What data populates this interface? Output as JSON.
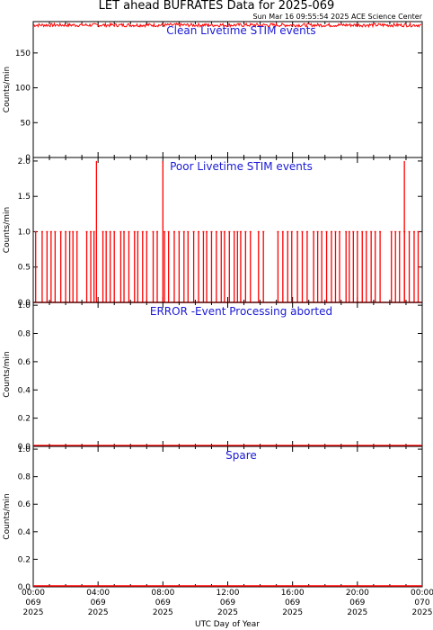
{
  "header": {
    "title": "LET ahead BUFRATES Data for 2025-069",
    "timestamp": "Sun Mar 16 09:55:54 2025 ACE Science Center"
  },
  "colors": {
    "series": "#ff0000",
    "panel_title": "#1a1ad6",
    "axes": "#000000"
  },
  "x_axis": {
    "label": "UTC Day of Year",
    "ticks": [
      {
        "time": "00:00",
        "doy": "069",
        "year": "2025"
      },
      {
        "time": "04:00",
        "doy": "069",
        "year": "2025"
      },
      {
        "time": "08:00",
        "doy": "069",
        "year": "2025"
      },
      {
        "time": "12:00",
        "doy": "069",
        "year": "2025"
      },
      {
        "time": "16:00",
        "doy": "069",
        "year": "2025"
      },
      {
        "time": "20:00",
        "doy": "069",
        "year": "2025"
      },
      {
        "time": "00:00",
        "doy": "070",
        "year": "2025"
      }
    ]
  },
  "chart_data": [
    {
      "type": "line",
      "title": "Clean Livetime STIM events",
      "ylabel": "Counts/min",
      "xlim": [
        0,
        24
      ],
      "ylim": [
        0,
        195
      ],
      "yticks": [
        0,
        50,
        100,
        150
      ],
      "ytick_labels": [
        "0",
        "50",
        "100",
        "150"
      ],
      "series": [
        {
          "constant": 190,
          "noise": 2.5
        }
      ]
    },
    {
      "type": "line",
      "title": "Poor Livetime STIM events",
      "ylabel": "Counts/min",
      "xlim": [
        0,
        24
      ],
      "ylim": [
        0,
        2.05
      ],
      "yticks": [
        0,
        0.5,
        1,
        1.5,
        2
      ],
      "ytick_labels": [
        "0.0",
        "0.5",
        "1.0",
        "1.5",
        "2.0"
      ],
      "series": [
        {
          "ones_hours": [
            0.15,
            0.55,
            0.85,
            1.1,
            1.35,
            1.7,
            2.0,
            2.25,
            2.45,
            2.7,
            3.3,
            3.55,
            3.75,
            4.3,
            4.5,
            4.75,
            5.0,
            5.4,
            5.6,
            5.9,
            6.25,
            6.45,
            6.75,
            7.0,
            7.4,
            7.65,
            8.1,
            8.35,
            8.7,
            9.0,
            9.3,
            9.55,
            9.9,
            10.2,
            10.5,
            10.7,
            11.0,
            11.3,
            11.6,
            11.8,
            12.1,
            12.4,
            12.6,
            12.8,
            13.1,
            13.4,
            13.9,
            14.2,
            15.1,
            15.4,
            15.7,
            15.95,
            16.3,
            16.6,
            16.9,
            17.3,
            17.55,
            17.8,
            18.1,
            18.4,
            18.65,
            18.9,
            19.3,
            19.5,
            19.75,
            20.0,
            20.3,
            20.55,
            20.85,
            21.1,
            21.4,
            22.1,
            22.35,
            22.6,
            22.9,
            23.2,
            23.5,
            23.75
          ],
          "twos_hours": [
            3.9,
            8.0,
            22.9
          ]
        }
      ]
    },
    {
      "type": "line",
      "title": "ERROR -Event Processing aborted",
      "ylabel": "Counts/min",
      "xlim": [
        0,
        24
      ],
      "ylim": [
        0,
        1.02
      ],
      "yticks": [
        0,
        0.2,
        0.4,
        0.6,
        0.8,
        1.0
      ],
      "ytick_labels": [
        "0.0",
        "0.2",
        "0.4",
        "0.6",
        "0.8",
        "1.0"
      ],
      "series": [
        {
          "constant": 0
        }
      ]
    },
    {
      "type": "line",
      "title": "Spare",
      "ylabel": "Counts/min",
      "xlim": [
        0,
        24
      ],
      "ylim": [
        0,
        1.02
      ],
      "yticks": [
        0,
        0.2,
        0.4,
        0.6,
        0.8,
        1.0
      ],
      "ytick_labels": [
        "0.0",
        "0.2",
        "0.4",
        "0.6",
        "0.8",
        "1.0"
      ],
      "series": [
        {
          "constant": 0
        }
      ]
    }
  ]
}
